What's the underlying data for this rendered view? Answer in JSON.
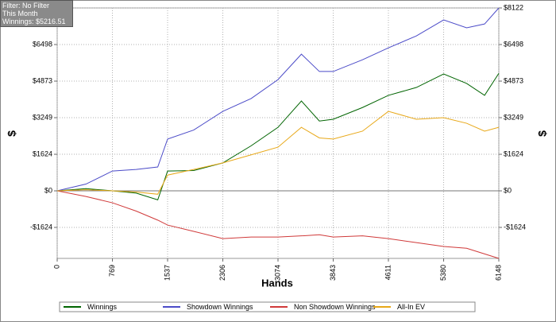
{
  "filter_box": {
    "lines": [
      "Filter: No Filter",
      "This Month",
      "Winnings: $5216.51"
    ]
  },
  "chart_data": {
    "type": "line",
    "x_label": "Hands",
    "y_label": "$",
    "x": [
      0,
      400,
      769,
      1100,
      1400,
      1537,
      1900,
      2306,
      2700,
      3074,
      3400,
      3650,
      3843,
      4250,
      4611,
      5000,
      5380,
      5700,
      5950,
      6148
    ],
    "series": [
      {
        "name": "Winnings",
        "color": "#006400",
        "values": [
          0,
          100,
          0,
          -100,
          -400,
          880,
          900,
          1240,
          2000,
          2820,
          3990,
          3100,
          3180,
          3700,
          4240,
          4590,
          5190,
          4770,
          4240,
          5217
        ]
      },
      {
        "name": "Showdown Winnings",
        "color": "#4b4bc8",
        "values": [
          0,
          300,
          880,
          950,
          1060,
          2300,
          2700,
          3530,
          4100,
          4940,
          6070,
          5300,
          5300,
          5820,
          6350,
          6880,
          7590,
          7240,
          7410,
          8122
        ]
      },
      {
        "name": "Non Showdown Winnings",
        "color": "#d03a3a",
        "values": [
          0,
          -250,
          -530,
          -900,
          -1300,
          -1520,
          -1800,
          -2120,
          -2050,
          -2050,
          -2000,
          -1950,
          -2050,
          -2000,
          -2120,
          -2300,
          -2470,
          -2550,
          -2800,
          -3000
        ]
      },
      {
        "name": "All-In EV",
        "color": "#e8a818",
        "values": [
          0,
          50,
          0,
          -50,
          -150,
          700,
          950,
          1240,
          1600,
          1940,
          2820,
          2350,
          2300,
          2650,
          3530,
          3180,
          3250,
          3000,
          2650,
          2820
        ]
      }
    ],
    "xlim": [
      0,
      6148
    ],
    "xticks": [
      0,
      769,
      1537,
      2306,
      3074,
      3843,
      4611,
      5380,
      6148
    ],
    "ylim": [
      -3000,
      8122
    ],
    "yticks": [
      {
        "value": -1624,
        "label": "-$1624"
      },
      {
        "value": 0,
        "label": "$0"
      },
      {
        "value": 1624,
        "label": "$1624"
      },
      {
        "value": 3249,
        "label": "$3249"
      },
      {
        "value": 4873,
        "label": "$4873"
      },
      {
        "value": 6498,
        "label": "$6498"
      },
      {
        "value": 8122,
        "label": "$8122"
      }
    ],
    "grid": true
  }
}
